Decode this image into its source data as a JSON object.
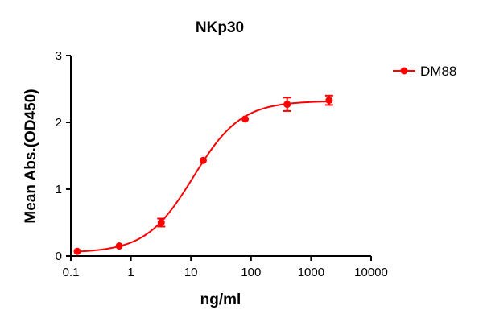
{
  "chart_data": {
    "type": "scatter",
    "title": "NKp30",
    "xlabel": "ng/ml",
    "ylabel": "Mean Abs.(OD450)",
    "xscale": "log",
    "xlim": [
      0.1,
      10000
    ],
    "ylim": [
      0,
      3
    ],
    "xticks": [
      "0.1",
      "1",
      "10",
      "100",
      "1000",
      "10000"
    ],
    "yticks": [
      "0",
      "1",
      "2",
      "3"
    ],
    "grid": false,
    "legend_position": "top-right",
    "color": "#ff0000",
    "series": [
      {
        "name": "DM88",
        "x": [
          0.128,
          0.64,
          3.2,
          16,
          80,
          400,
          2000
        ],
        "y": [
          0.07,
          0.15,
          0.5,
          1.43,
          2.05,
          2.27,
          2.33
        ],
        "error": [
          0.01,
          0.01,
          0.06,
          0.02,
          0.02,
          0.1,
          0.07
        ],
        "fit_curve": "sigmoidal"
      }
    ]
  }
}
